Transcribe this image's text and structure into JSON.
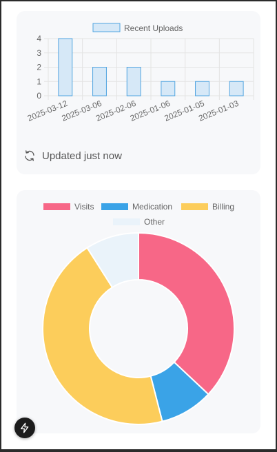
{
  "colors": {
    "bar_fill": "#d6e8f7",
    "bar_stroke": "#4fa3e0",
    "grid": "#e3e3e3",
    "card_bg": "#f7f8fa",
    "visits": "#f76787",
    "medication": "#3aa3e7",
    "billing": "#fccd5b",
    "other": "#eaf3fa"
  },
  "icons": {
    "refresh": "refresh-icon",
    "fab": "lightning-icon"
  },
  "status": {
    "updated_label": "Updated just now"
  },
  "chart_data": [
    {
      "type": "bar",
      "legend_position": "top",
      "series": [
        {
          "name": "Recent Uploads",
          "values": [
            4,
            2,
            2,
            1,
            1,
            1
          ]
        }
      ],
      "categories": [
        "2025-03-12",
        "2025-03-06",
        "2025-02-06",
        "2025-01-06",
        "2025-01-05",
        "2025-01-03"
      ],
      "ylim": [
        0,
        4
      ],
      "yticks": [
        0,
        1,
        2,
        3,
        4
      ],
      "grid": true
    },
    {
      "type": "pie",
      "style": "doughnut",
      "legend_position": "top",
      "labels": [
        "Visits",
        "Medication",
        "Billing",
        "Other"
      ],
      "values": [
        37,
        9,
        45,
        9
      ]
    }
  ]
}
